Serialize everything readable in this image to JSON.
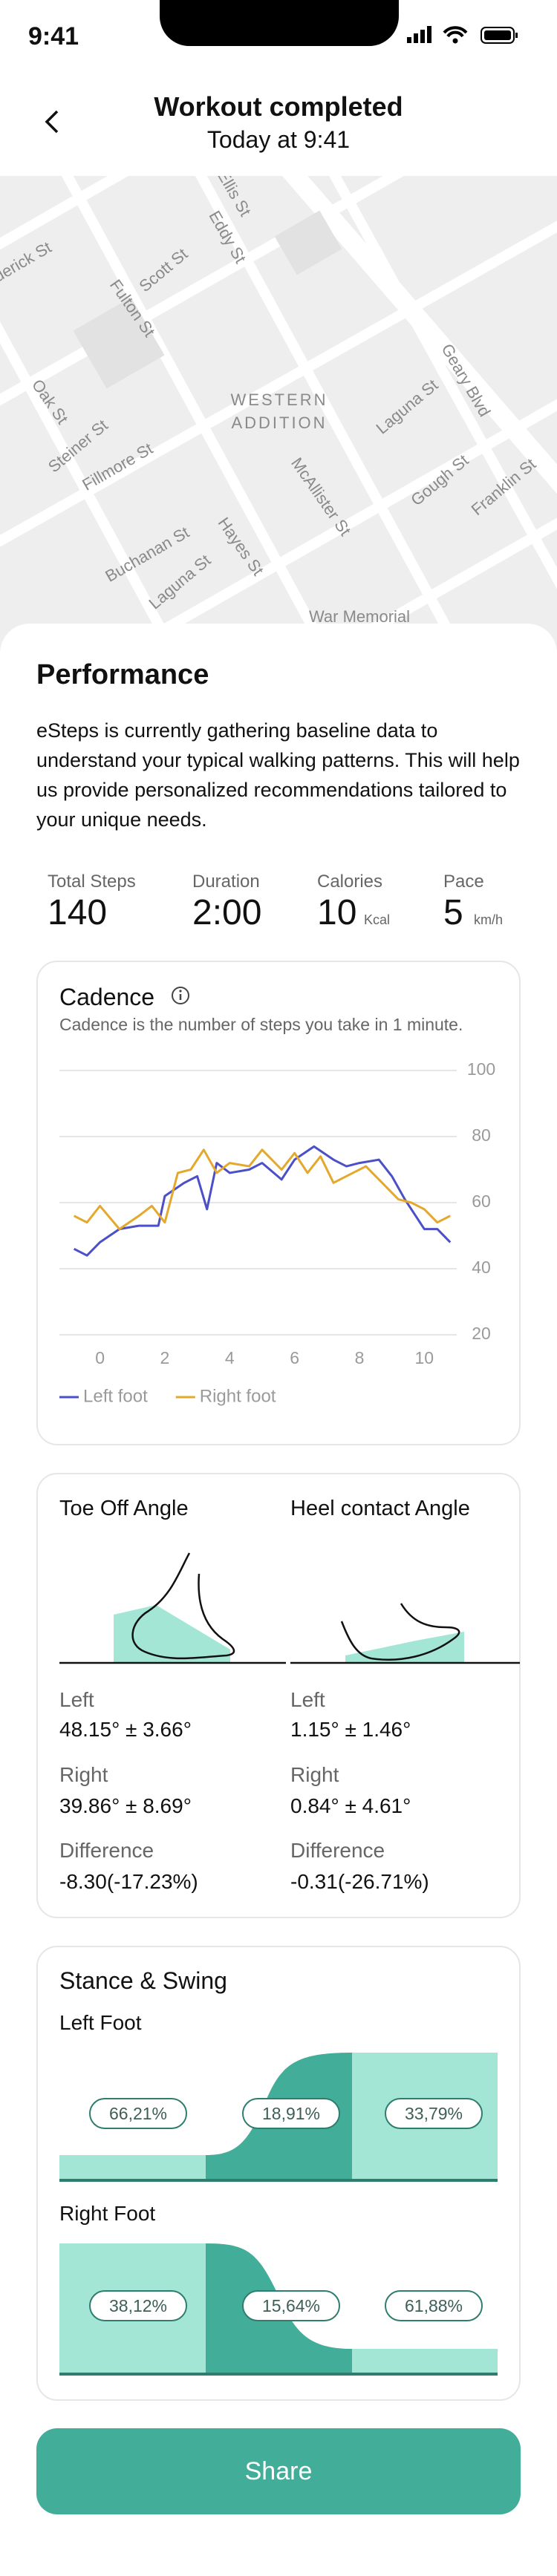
{
  "status_bar": {
    "time": "9:41"
  },
  "header": {
    "title": "Workout completed",
    "subtitle": "Today at 9:41"
  },
  "map": {
    "labels": [
      "Ellis St",
      "Eddy St",
      "derick St",
      "Scott St",
      "Fulton St",
      "Oak St",
      "Steiner St",
      "Fillmore St",
      "WESTERN",
      "ADDITION",
      "Laguna St",
      "Geary Blvd",
      "McAllister St",
      "Gough St",
      "Franklin St",
      "Buchanan St",
      "Hayes St",
      "Laguna St",
      "War Memorial"
    ]
  },
  "performance": {
    "title": "Performance",
    "description": "eSteps is currently gathering baseline data to understand your typical walking patterns. This will help us provide personalized recommendations tailored to your unique needs.",
    "stats": [
      {
        "label": "Total Steps",
        "value": "140"
      },
      {
        "label": "Duration",
        "value": "2:00"
      },
      {
        "label": "Calories",
        "value": "10",
        "unit": "Kcal"
      },
      {
        "label": "Pace",
        "value": "5",
        "unit": "km/h"
      }
    ]
  },
  "cadence": {
    "title": "Cadence",
    "subtitle": "Cadence is the number of steps you take in 1 minute.",
    "chart_data": {
      "type": "line",
      "xlim": [
        -1.25,
        11
      ],
      "xticks": [
        0,
        2,
        4,
        6,
        8,
        10
      ],
      "ylim": [
        20,
        100
      ],
      "yticks": [
        20,
        40,
        60,
        80,
        100
      ],
      "grid": true,
      "series": [
        {
          "name": "Left foot",
          "color": "#4b4fc8",
          "x": [
            -0.8,
            -0.4,
            0,
            0.6,
            1.2,
            1.8,
            2,
            2.6,
            3.0,
            3.3,
            3.6,
            4,
            4.6,
            5.0,
            5.6,
            6.0,
            6.6,
            7.2,
            7.6,
            8,
            8.6,
            9,
            9.4,
            10,
            10.4,
            10.8
          ],
          "values": [
            46,
            44,
            48,
            52,
            53,
            53,
            62,
            66,
            68,
            58,
            72,
            69,
            70,
            72,
            67,
            73,
            77,
            73,
            71,
            72,
            73,
            68,
            61,
            52,
            52,
            48
          ]
        },
        {
          "name": "Right foot",
          "color": "#e4a82c",
          "x": [
            -0.8,
            -0.4,
            0,
            0.6,
            1.2,
            1.6,
            2,
            2.4,
            2.8,
            3.2,
            3.6,
            4,
            4.6,
            5,
            5.6,
            6.0,
            6.4,
            6.8,
            7.2,
            7.8,
            8.2,
            8.6,
            9.2,
            9.6,
            10,
            10.4,
            10.8
          ],
          "values": [
            56,
            54,
            59,
            52,
            56,
            59,
            54,
            69,
            70,
            76,
            69,
            72,
            71,
            76,
            70,
            75,
            69,
            74,
            66,
            69,
            71,
            67,
            61,
            60,
            58,
            54,
            56
          ]
        }
      ]
    }
  },
  "angles": {
    "toe_off": {
      "title": "Toe Off Angle",
      "rows": [
        {
          "label": "Left",
          "value": "48.15° ± 3.66°"
        },
        {
          "label": "Right",
          "value": "39.86° ± 8.69°"
        },
        {
          "label": "Difference",
          "value": "-8.30(-17.23%)"
        }
      ]
    },
    "heel_contact": {
      "title": "Heel contact Angle",
      "rows": [
        {
          "label": "Left",
          "value": "1.15° ± 1.46°"
        },
        {
          "label": "Right",
          "value": "0.84° ± 4.61°"
        },
        {
          "label": "Difference",
          "value": "-0.31(-26.71%)"
        }
      ]
    }
  },
  "stance_swing": {
    "title": "Stance & Swing",
    "left_foot": {
      "label": "Left Foot",
      "phases": [
        "66,21%",
        "18,91%",
        "33,79%"
      ]
    },
    "right_foot": {
      "label": "Right Foot",
      "phases": [
        "38,12%",
        "15,64%",
        "61,88%"
      ]
    }
  },
  "share": {
    "button": "Share"
  }
}
